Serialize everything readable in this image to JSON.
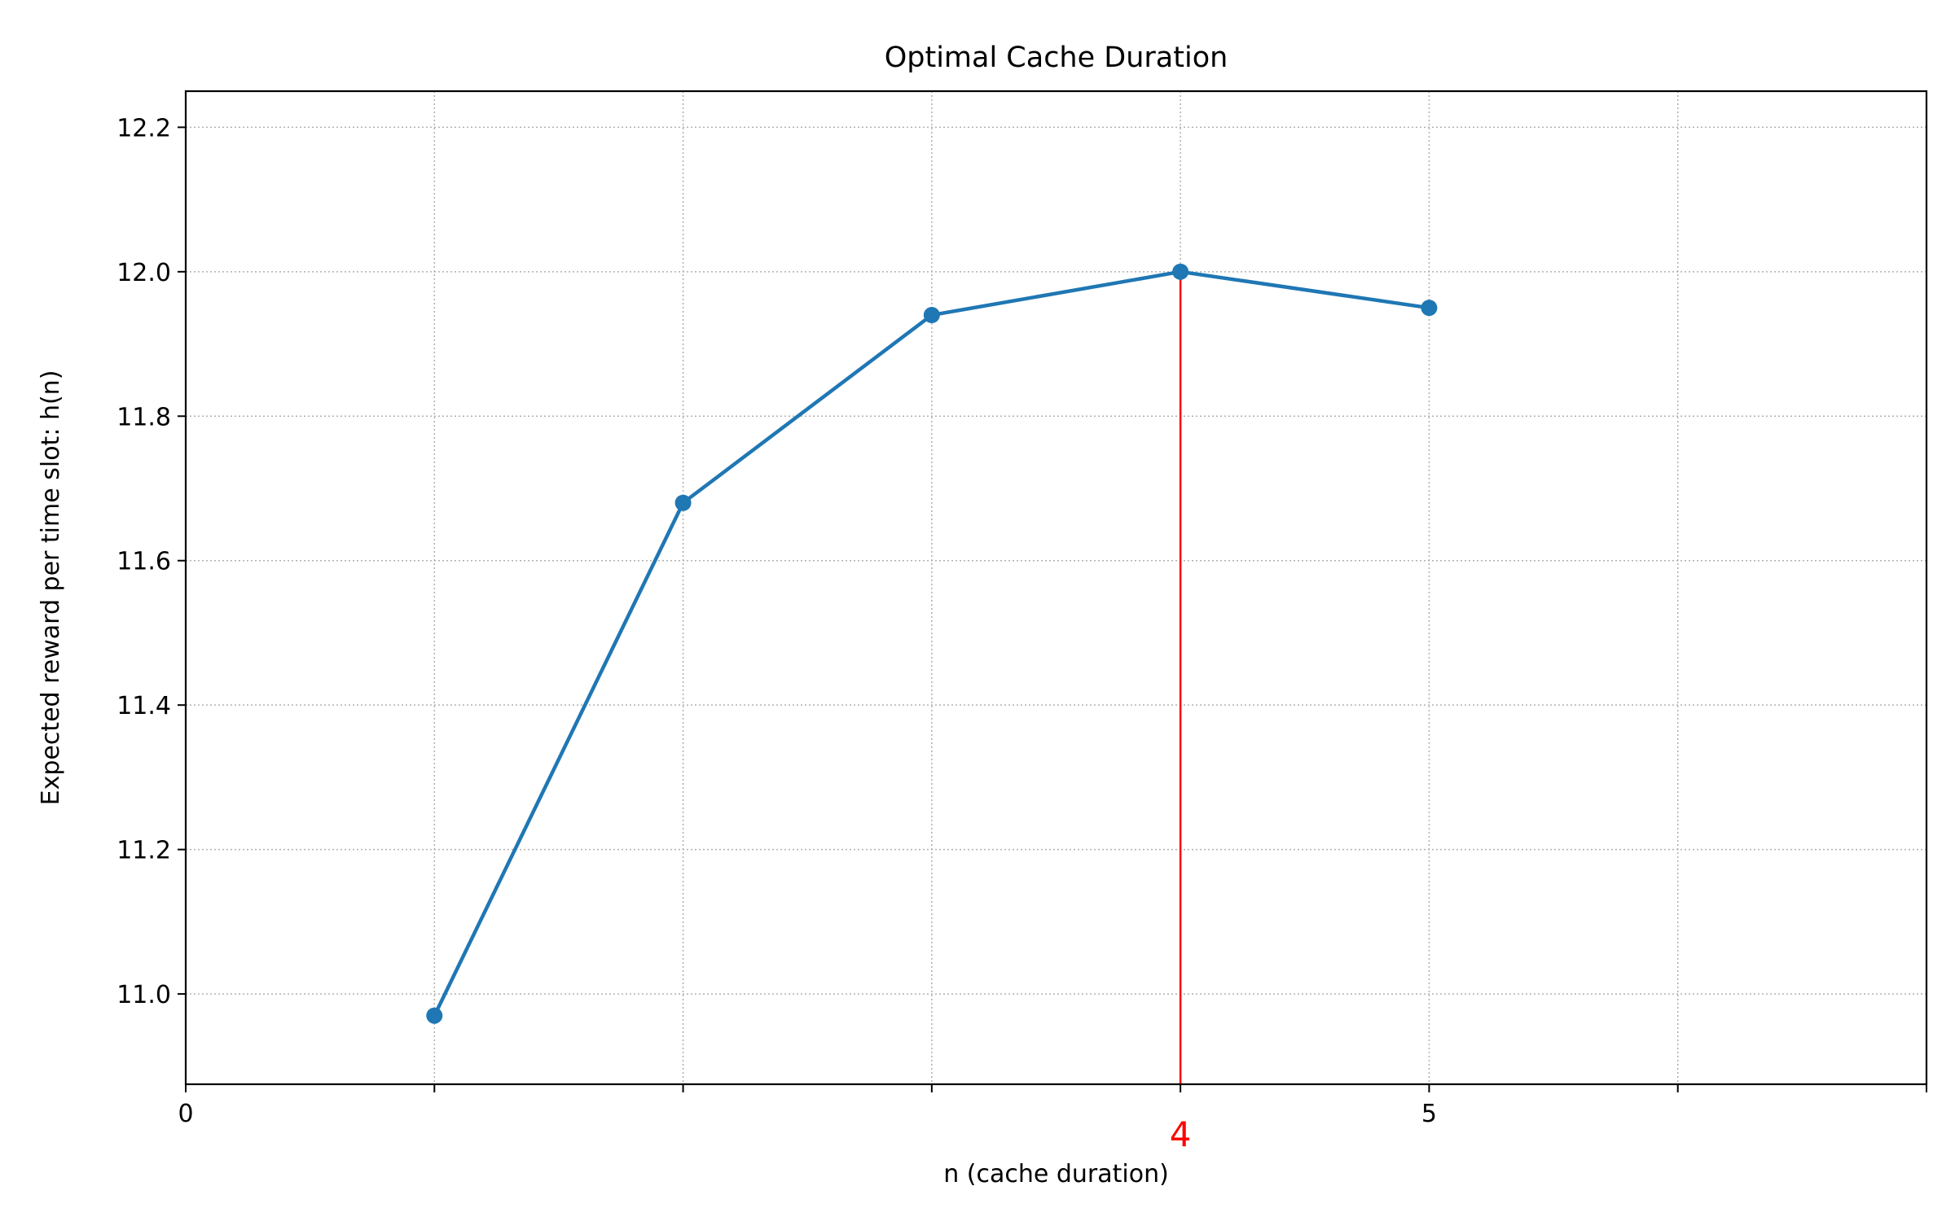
{
  "chart_data": {
    "type": "line",
    "title": "Optimal Cache Duration",
    "xlabel": "n (cache duration)",
    "ylabel": "Expected reward per time slot: h(n)",
    "xlim": [
      0,
      7
    ],
    "ylim": [
      10.875,
      12.25
    ],
    "x_ticks": [
      {
        "value": 0,
        "label": "0"
      },
      {
        "value": 1,
        "label": ""
      },
      {
        "value": 2,
        "label": ""
      },
      {
        "value": 3,
        "label": ""
      },
      {
        "value": 4,
        "label": ""
      },
      {
        "value": 5,
        "label": "5"
      },
      {
        "value": 6,
        "label": ""
      },
      {
        "value": 7,
        "label": ""
      }
    ],
    "y_ticks": [
      {
        "value": 11.0,
        "label": "11.0"
      },
      {
        "value": 11.2,
        "label": "11.2"
      },
      {
        "value": 11.4,
        "label": "11.4"
      },
      {
        "value": 11.6,
        "label": "11.6"
      },
      {
        "value": 11.8,
        "label": "11.8"
      },
      {
        "value": 12.0,
        "label": "12.0"
      },
      {
        "value": 12.2,
        "label": "12.2"
      }
    ],
    "grid": true,
    "series": [
      {
        "x": [
          1,
          2,
          3,
          4,
          5
        ],
        "values": [
          10.97,
          11.68,
          11.94,
          12.0,
          11.95
        ],
        "color": "#1f77b4",
        "marker": "circle"
      }
    ],
    "annotations": [
      {
        "type": "vertical-line",
        "x": 4,
        "y_top": 12.0,
        "label": "4",
        "color": "#ff0000"
      }
    ]
  }
}
